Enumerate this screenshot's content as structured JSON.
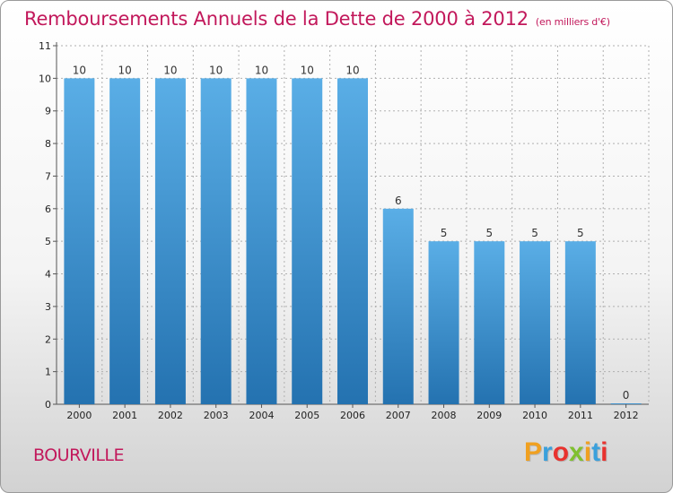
{
  "header": {
    "title": "Remboursements Annuels de la Dette de 2000 à 2012",
    "unit": "(en milliers d'€)"
  },
  "footer": {
    "city": "BOURVILLE",
    "brand_letters": [
      {
        "char": "P",
        "color": "#f0a020"
      },
      {
        "char": "r",
        "color": "#3aa0dc"
      },
      {
        "char": "o",
        "color": "#e8322e"
      },
      {
        "char": "x",
        "color": "#80c030"
      },
      {
        "char": "i",
        "color": "#f0a020"
      },
      {
        "char": "t",
        "color": "#3aa0dc"
      },
      {
        "char": "i",
        "color": "#e8322e"
      }
    ]
  },
  "colors": {
    "title": "#c2185b",
    "bar_top": "#5aaee6",
    "bar_bottom": "#2472b0",
    "grid": "#b0b0b0"
  },
  "chart_data": {
    "type": "bar",
    "title": "Remboursements Annuels de la Dette de 2000 à 2012",
    "unit": "(en milliers d'€)",
    "categories": [
      "2000",
      "2001",
      "2002",
      "2003",
      "2004",
      "2005",
      "2006",
      "2007",
      "2008",
      "2009",
      "2010",
      "2011",
      "2012"
    ],
    "values": [
      10,
      10,
      10,
      10,
      10,
      10,
      10,
      6,
      5,
      5,
      5,
      5,
      0
    ],
    "value_labels": [
      "10",
      "10",
      "10",
      "10",
      "10",
      "10",
      "10",
      "6",
      "5",
      "5",
      "5",
      "5",
      "0"
    ],
    "ylim": [
      0,
      11
    ],
    "y_ticks": [
      0,
      1,
      2,
      3,
      4,
      5,
      6,
      7,
      8,
      9,
      10,
      11
    ],
    "y_tick_labels": [
      "0",
      "1",
      "2",
      "3",
      "4",
      "5",
      "6",
      "7",
      "8",
      "9",
      "10",
      "11"
    ],
    "grid": true,
    "xlabel": "",
    "ylabel": ""
  }
}
